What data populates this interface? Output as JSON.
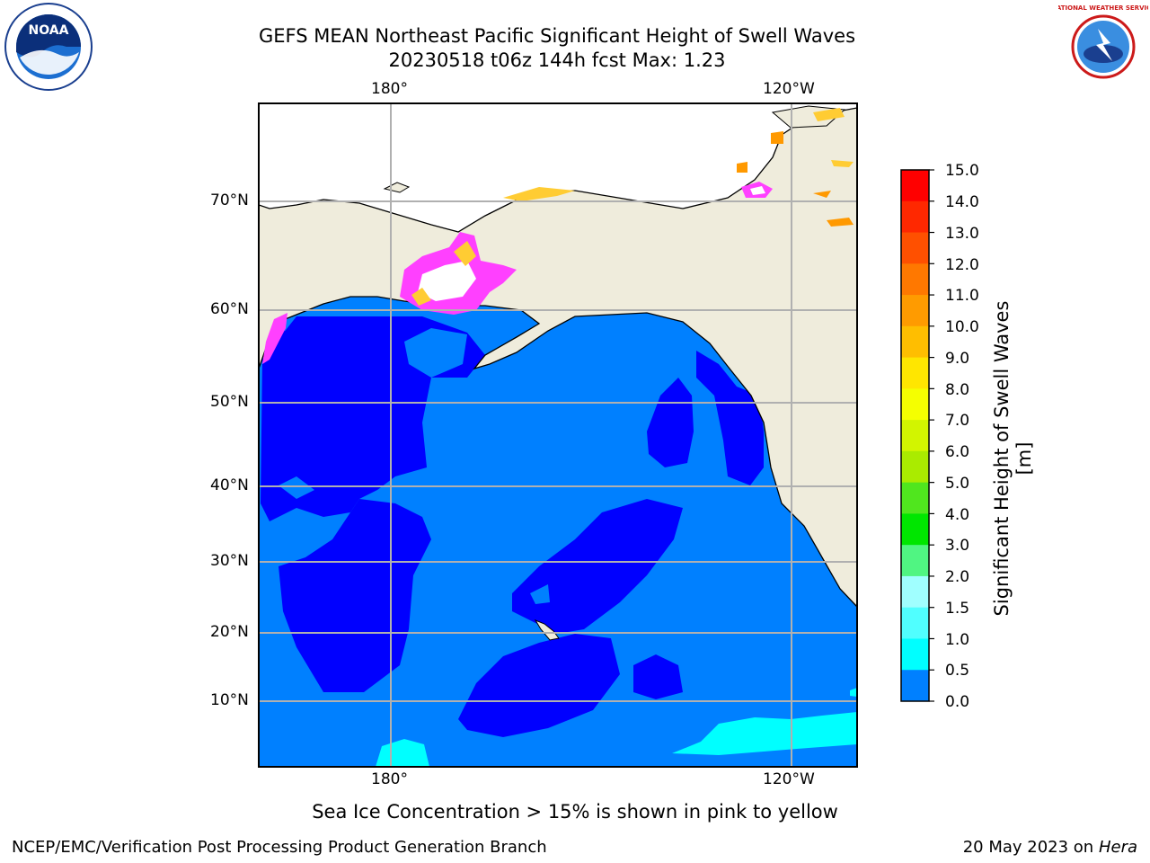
{
  "header": {
    "title_line1": "GEFS MEAN Northeast Pacific Significant Height of Swell Waves",
    "title_line2": "20230518 t06z 144h fcst   Max: 1.23"
  },
  "logos": {
    "left": {
      "text": "NOAA"
    },
    "right": {
      "text": "NATIONAL WEATHER SERVICE"
    }
  },
  "map": {
    "lon_labels_top": [
      "180°",
      "120°W"
    ],
    "lon_labels_bottom": [
      "180°",
      "120°W"
    ],
    "lat_labels": [
      "70°N",
      "60°N",
      "50°N",
      "40°N",
      "30°N",
      "20°N",
      "10°N"
    ],
    "colors": {
      "land": "#efecdc",
      "sea_0_05": "#0000ff",
      "sea_05_1": "#0080ff",
      "sea_1_15": "#00ffff",
      "grid": "#b0b0b0",
      "ice_pink": "#ff40ff",
      "ice_orange": "#ff9900",
      "ice_yellow": "#ffcc33"
    }
  },
  "colorbar": {
    "label": "Significant Height of Swell Waves [m]",
    "ticks": [
      "15.0",
      "14.0",
      "13.0",
      "12.0",
      "11.0",
      "10.0",
      "9.0",
      "8.0",
      "7.0",
      "6.0",
      "5.0",
      "4.0",
      "3.0",
      "2.0",
      "1.5",
      "1.0",
      "0.5",
      "0.0"
    ],
    "colors": [
      "#ff0000",
      "#ff2800",
      "#ff5000",
      "#ff7800",
      "#ff9b00",
      "#ffbe00",
      "#ffe600",
      "#f5ff00",
      "#d2f500",
      "#aaeb00",
      "#50e61e",
      "#00e600",
      "#50f582",
      "#a0ffff",
      "#50ffff",
      "#00ffff",
      "#0080ff",
      "#0000ff"
    ]
  },
  "caption": "Sea Ice Concentration > 15% is shown in pink to yellow",
  "footer": {
    "left": "NCEP/EMC/Verification Post Processing Product Generation Branch",
    "right_prefix": "20 May 2023 on",
    "right_host": "Hera"
  }
}
